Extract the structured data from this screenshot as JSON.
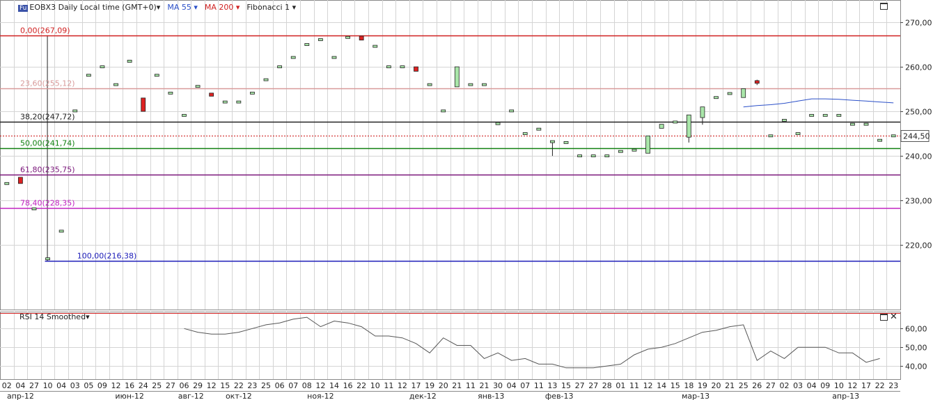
{
  "header": {
    "symbol_icon": "Fu",
    "symbol": "EOBX3 Daily Local time (GMT+0)",
    "ma55": "MA 55",
    "ma200": "MA 200",
    "fib": "Fibonacci 1"
  },
  "colors": {
    "grid": "#d4d4d4",
    "up": "#a9e6a9",
    "down": "#dd2222",
    "ma55": "#2a4fc8",
    "ma55_label": "#2a4fc8",
    "ma200_label": "#d02020"
  },
  "chart_data": [
    {
      "type": "candlestick",
      "ylim": [
        205.5,
        275
      ],
      "yticks": [
        "270,00",
        "260,00",
        "250,00",
        "240,00",
        "230,00",
        "220,00"
      ],
      "last_price": "244,50",
      "fib_levels": [
        {
          "label": "0,00(267,09)",
          "value": 267.09,
          "color": "#d02020"
        },
        {
          "label": "23,60(255,12)",
          "value": 255.12,
          "color": "#d89a9a"
        },
        {
          "label": "38,20(247,72)",
          "value": 247.72,
          "color": "#222222"
        },
        {
          "label": "50,00(241,74)",
          "value": 241.74,
          "color": "#108010"
        },
        {
          "label": "61,80(235,75)",
          "value": 235.75,
          "color": "#7a157a"
        },
        {
          "label": "78,40(228,35)",
          "value": 228.35,
          "color": "#c020c0"
        },
        {
          "label": "100,00(216,38)",
          "value": 216.38,
          "color": "#1a1ab8"
        }
      ],
      "candles": [
        [
          233.8,
          233.8,
          233.8,
          233.8
        ],
        [
          235.2,
          235.2,
          233.8,
          233.8
        ],
        [
          228.1,
          228.1,
          228.1,
          228.1
        ],
        [
          216.9,
          216.9,
          216.9,
          216.9
        ],
        [
          223.1,
          223.1,
          223.1,
          223.1
        ],
        [
          250.1,
          250.1,
          250.1,
          250.1
        ],
        [
          258.1,
          258.1,
          258.1,
          258.1
        ],
        [
          260.0,
          260.0,
          260.0,
          260.0
        ],
        [
          256.0,
          256.0,
          256.0,
          256.0
        ],
        [
          261.0,
          261.5,
          261.0,
          261.5
        ],
        [
          253.0,
          253.0,
          250.0,
          250.0
        ],
        [
          258.1,
          258.1,
          258.1,
          258.1
        ],
        [
          254.1,
          254.1,
          254.1,
          254.1
        ],
        [
          249.1,
          249.1,
          249.1,
          249.1
        ],
        [
          255.6,
          255.6,
          255.6,
          255.6
        ],
        [
          254.1,
          254.1,
          253.4,
          253.4
        ],
        [
          252.1,
          252.1,
          252.1,
          252.1
        ],
        [
          252.1,
          252.1,
          252.1,
          252.1
        ],
        [
          254.1,
          254.1,
          254.1,
          254.1
        ],
        [
          257.1,
          257.1,
          257.1,
          257.1
        ],
        [
          260.0,
          260.0,
          260.0,
          260.0
        ],
        [
          262.1,
          262.1,
          262.1,
          262.1
        ],
        [
          265.0,
          265.0,
          265.0,
          265.0
        ],
        [
          266.1,
          266.1,
          266.1,
          266.1
        ],
        [
          262.1,
          262.1,
          262.1,
          262.1
        ],
        [
          266.6,
          266.6,
          266.6,
          266.6
        ],
        [
          266.9,
          266.9,
          266.0,
          266.0
        ],
        [
          264.6,
          264.6,
          264.6,
          264.6
        ],
        [
          260.0,
          260.0,
          260.0,
          260.0
        ],
        [
          260.0,
          260.0,
          260.0,
          260.0
        ],
        [
          260.0,
          260.0,
          259.0,
          259.0
        ],
        [
          256.0,
          256.0,
          256.0,
          256.0
        ],
        [
          250.1,
          250.1,
          250.1,
          250.1
        ],
        [
          255.5,
          260.0,
          255.5,
          260.0
        ],
        [
          256.0,
          256.0,
          256.0,
          256.0
        ],
        [
          256.0,
          256.0,
          256.0,
          256.0
        ],
        [
          247.0,
          247.5,
          247.0,
          247.5
        ],
        [
          250.1,
          250.1,
          250.1,
          250.1
        ],
        [
          245.0,
          245.0,
          245.0,
          245.0
        ],
        [
          246.0,
          246.0,
          246.0,
          246.0
        ],
        [
          243.2,
          243.2,
          240.0,
          243.2
        ],
        [
          243.0,
          243.0,
          243.0,
          243.0
        ],
        [
          240.0,
          240.0,
          240.0,
          240.0
        ],
        [
          240.0,
          240.0,
          240.0,
          240.0
        ],
        [
          240.0,
          240.0,
          240.0,
          240.0
        ],
        [
          241.0,
          241.0,
          241.0,
          241.0
        ],
        [
          241.3,
          241.3,
          241.3,
          241.3
        ],
        [
          240.6,
          244.5,
          240.6,
          244.5
        ],
        [
          246.2,
          247.1,
          246.2,
          247.1
        ],
        [
          247.6,
          247.6,
          247.6,
          247.6
        ],
        [
          244.2,
          249.2,
          243.0,
          249.2
        ],
        [
          248.6,
          251.0,
          247.0,
          251.0
        ],
        [
          253.1,
          253.1,
          253.1,
          253.1
        ],
        [
          254.0,
          254.0,
          254.0,
          254.0
        ],
        [
          253.1,
          255.1,
          253.1,
          255.1
        ],
        [
          256.9,
          257.1,
          255.9,
          256.3
        ],
        [
          244.5,
          244.5,
          244.5,
          244.5
        ],
        [
          248.0,
          248.0,
          248.0,
          248.0
        ],
        [
          245.0,
          245.0,
          245.0,
          245.0
        ],
        [
          249.1,
          249.1,
          249.1,
          249.1
        ],
        [
          249.1,
          249.1,
          249.1,
          249.1
        ],
        [
          249.1,
          249.1,
          249.1,
          249.1
        ],
        [
          247.1,
          247.1,
          247.1,
          247.1
        ],
        [
          247.1,
          247.1,
          247.1,
          247.1
        ],
        [
          243.5,
          243.5,
          243.5,
          243.5
        ],
        [
          244.5,
          244.5,
          244.5,
          244.5
        ]
      ],
      "ma55_start": 54,
      "ma55": [
        251.0,
        251.3,
        251.5,
        251.8,
        252.3,
        252.8,
        252.8,
        252.7,
        252.5,
        252.3,
        252.1,
        251.9
      ]
    },
    {
      "type": "line",
      "title": "RSI 14 Smoothed",
      "ylim": [
        33,
        69
      ],
      "yticks": [
        "60,00",
        "50,00",
        "40,00"
      ],
      "x_start": 13,
      "values": [
        60,
        58,
        57,
        57,
        58,
        60,
        62,
        63,
        65,
        66,
        61,
        64,
        63,
        61,
        56,
        56,
        55,
        52,
        47,
        55,
        51,
        51,
        44,
        47,
        43,
        44,
        41,
        41,
        39,
        39,
        39,
        40,
        41,
        46,
        49,
        50,
        52,
        55,
        58,
        59,
        61,
        62,
        43,
        48,
        44,
        50,
        50,
        50,
        47,
        47,
        42,
        44
      ]
    }
  ],
  "x_axis": {
    "days": [
      "02",
      "04",
      "27",
      "10",
      "04",
      "03",
      "05",
      "09",
      "12",
      "16",
      "24",
      "25",
      "27",
      "06",
      "29",
      "12",
      "15",
      "22",
      "23",
      "25",
      "06",
      "07",
      "08",
      "12",
      "14",
      "16",
      "22",
      "10",
      "11",
      "12",
      "17",
      "19",
      "20",
      "21",
      "11",
      "21",
      "30",
      "04",
      "07",
      "11",
      "13",
      "15",
      "27",
      "27",
      "28",
      "01",
      "11",
      "12",
      "14",
      "15",
      "18",
      "19",
      "20",
      "21",
      "25",
      "26",
      "27",
      "02",
      "03",
      "04",
      "09",
      "10",
      "12",
      "17",
      "22",
      "23"
    ],
    "months": [
      {
        "label": "апр-12",
        "at": 1
      },
      {
        "label": "июн-12",
        "at": 9
      },
      {
        "label": "авг-12",
        "at": 13.5
      },
      {
        "label": "окт-12",
        "at": 17
      },
      {
        "label": "ноя-12",
        "at": 23
      },
      {
        "label": "дек-12",
        "at": 30.5
      },
      {
        "label": "янв-13",
        "at": 35.5
      },
      {
        "label": "фев-13",
        "at": 40.5
      },
      {
        "label": "мар-13",
        "at": 50.5
      },
      {
        "label": "апр-13",
        "at": 61.5
      }
    ]
  }
}
